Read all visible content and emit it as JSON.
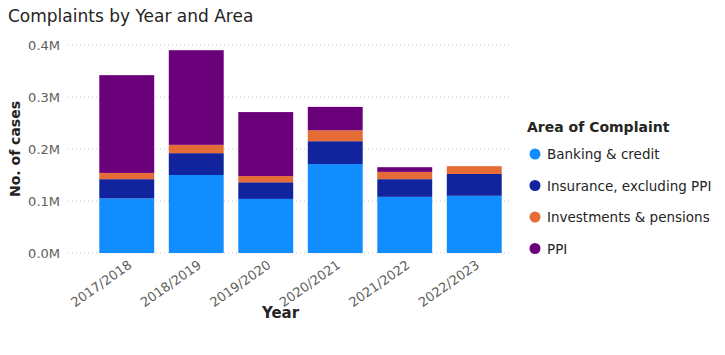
{
  "chart_data": {
    "type": "bar",
    "title": "Complaints by Year and Area",
    "x_label": "Year",
    "y_label": "No. of cases",
    "legend_title": "Area of Complaint",
    "categories": [
      "2017/2018",
      "2018/2019",
      "2019/2020",
      "2020/2021",
      "2021/2022",
      "2022/2023"
    ],
    "series": [
      {
        "name": "Banking & credit",
        "color": "#118DFF",
        "values": [
          105000,
          150000,
          104000,
          171000,
          108000,
          110000
        ]
      },
      {
        "name": "Insurance, excluding PPI",
        "color": "#12239E",
        "values": [
          37000,
          42000,
          32000,
          44000,
          34000,
          42000
        ]
      },
      {
        "name": "Investments & pensions",
        "color": "#E66C37",
        "values": [
          12000,
          16000,
          12000,
          21000,
          14000,
          15000
        ]
      },
      {
        "name": "PPI",
        "color": "#6B007B",
        "values": [
          188000,
          182000,
          123000,
          45000,
          9000,
          0
        ]
      }
    ],
    "ylim": [
      0,
      400000
    ],
    "yticks": [
      {
        "value": 0,
        "label": "0.0M"
      },
      {
        "value": 100000,
        "label": "0.1M"
      },
      {
        "value": 200000,
        "label": "0.2M"
      },
      {
        "value": 300000,
        "label": "0.3M"
      },
      {
        "value": 400000,
        "label": "0.4M"
      }
    ],
    "grid": true,
    "stacked": true,
    "legend": "right"
  }
}
